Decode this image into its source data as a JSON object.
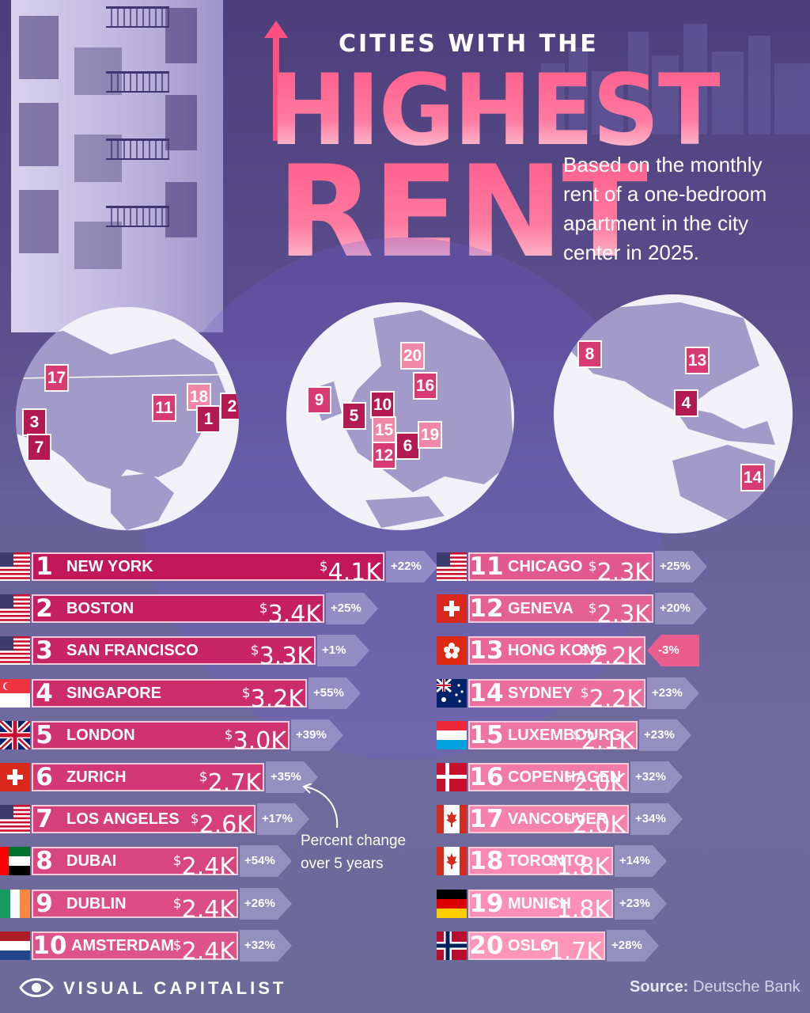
{
  "header": {
    "small_title": "CITIES WITH THE",
    "big_title_1": "HIGHEST",
    "big_title_2": "RENT",
    "subtitle": "Based on the monthly rent of a one-bedroom apartment in the city center in 2025."
  },
  "globes": {
    "americas": [
      "17",
      "18",
      "11",
      "2",
      "1",
      "3",
      "7"
    ],
    "europe": [
      "20",
      "16",
      "9",
      "5",
      "10",
      "15",
      "6",
      "19",
      "12"
    ],
    "asia_pacific": [
      "8",
      "13",
      "4",
      "14"
    ]
  },
  "note": "Percent change over 5 years",
  "footer": {
    "brand": "VISUAL CAPITALIST",
    "source_label": "Source:",
    "source_value": "Deutsche Bank"
  },
  "colors": {
    "bar_dark": "#c2185b",
    "bar_light": "#ff8fb3",
    "background": "#5b4e8c"
  },
  "chart_data": {
    "type": "bar",
    "title": "CITIES WITH THE HIGHEST RENT",
    "unit": "USD thousands per month",
    "series": [
      {
        "name": "",
        "values": []
      }
    ],
    "rows": [
      {
        "rank": "1",
        "city": "NEW YORK",
        "country_flag": "us-flag",
        "value": 4.1,
        "label": "4.1K",
        "change": "+22%"
      },
      {
        "rank": "2",
        "city": "BOSTON",
        "country_flag": "us-flag",
        "value": 3.4,
        "label": "3.4K",
        "change": "+25%"
      },
      {
        "rank": "3",
        "city": "SAN FRANCISCO",
        "country_flag": "us-flag",
        "value": 3.3,
        "label": "3.3K",
        "change": "+1%"
      },
      {
        "rank": "4",
        "city": "SINGAPORE",
        "country_flag": "singapore-flag",
        "value": 3.2,
        "label": "3.2K",
        "change": "+55%"
      },
      {
        "rank": "5",
        "city": "LONDON",
        "country_flag": "uk-flag",
        "value": 3.0,
        "label": "3.0K",
        "change": "+39%"
      },
      {
        "rank": "6",
        "city": "ZURICH",
        "country_flag": "switzerland-flag",
        "value": 2.7,
        "label": "2.7K",
        "change": "+35%"
      },
      {
        "rank": "7",
        "city": "LOS ANGELES",
        "country_flag": "us-flag",
        "value": 2.6,
        "label": "2.6K",
        "change": "+17%"
      },
      {
        "rank": "8",
        "city": "DUBAI",
        "country_flag": "uae-flag",
        "value": 2.4,
        "label": "2.4K",
        "change": "+54%"
      },
      {
        "rank": "9",
        "city": "DUBLIN",
        "country_flag": "ireland-flag",
        "value": 2.4,
        "label": "2.4K",
        "change": "+26%"
      },
      {
        "rank": "10",
        "city": "AMSTERDAM",
        "country_flag": "netherlands-flag",
        "value": 2.4,
        "label": "2.4K",
        "change": "+32%"
      },
      {
        "rank": "11",
        "city": "CHICAGO",
        "country_flag": "us-flag",
        "value": 2.3,
        "label": "2.3K",
        "change": "+25%"
      },
      {
        "rank": "12",
        "city": "GENEVA",
        "country_flag": "switzerland-flag",
        "value": 2.3,
        "label": "2.3K",
        "change": "+20%"
      },
      {
        "rank": "13",
        "city": "HONG KONG",
        "country_flag": "hong-kong-flag",
        "value": 2.2,
        "label": "2.2K",
        "change": "-3%"
      },
      {
        "rank": "14",
        "city": "SYDNEY",
        "country_flag": "australia-flag",
        "value": 2.2,
        "label": "2.2K",
        "change": "+23%"
      },
      {
        "rank": "15",
        "city": "LUXEMBOURG",
        "country_flag": "luxembourg-flag",
        "value": 2.1,
        "label": "2.1K",
        "change": "+23%"
      },
      {
        "rank": "16",
        "city": "COPENHAGEN",
        "country_flag": "denmark-flag",
        "value": 2.0,
        "label": "2.0K",
        "change": "+32%"
      },
      {
        "rank": "17",
        "city": "VANCOUVER",
        "country_flag": "canada-flag",
        "value": 2.0,
        "label": "2.0K",
        "change": "+34%"
      },
      {
        "rank": "18",
        "city": "TORONTO",
        "country_flag": "canada-flag",
        "value": 1.8,
        "label": "1.8K",
        "change": "+14%"
      },
      {
        "rank": "19",
        "city": "MUNICH",
        "country_flag": "germany-flag",
        "value": 1.8,
        "label": "1.8K",
        "change": "+23%"
      },
      {
        "rank": "20",
        "city": "OSLO",
        "country_flag": "norway-flag",
        "value": 1.7,
        "label": "1.7K",
        "change": "+28%"
      }
    ]
  }
}
